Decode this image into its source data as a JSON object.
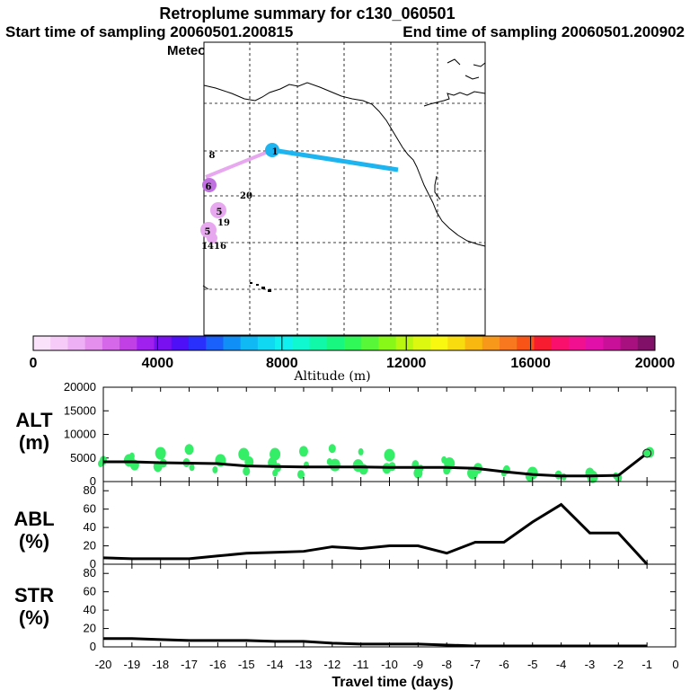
{
  "title": {
    "line1": "Retroplume summary for c130_060501",
    "line2a": "Start time of sampling 20060501.200815",
    "line2b": "End time of sampling 20060501.200902",
    "line3": "Meteorological data used is GFS"
  },
  "colors": {
    "plume_blue": "#1eb4f0",
    "plume_pink": "#e8a8f0",
    "plume_violet": "#c070e0",
    "scatter_green": "#33ee66",
    "colorbar": [
      "#fbe2fb",
      "#f6cbf8",
      "#eeb0f4",
      "#e48eee",
      "#d468e8",
      "#c040e6",
      "#a020ee",
      "#7810f0",
      "#4e10f6",
      "#2a30fc",
      "#1a60fa",
      "#1090f6",
      "#10b8f4",
      "#10d8f2",
      "#10f0f0",
      "#10f8d0",
      "#10f8a8",
      "#18f880",
      "#30f858",
      "#58f838",
      "#88f818",
      "#b8f810",
      "#dcf810",
      "#f8f810",
      "#f8dc10",
      "#f8b810",
      "#f8981a",
      "#f87820",
      "#f85418",
      "#f81c30",
      "#f8106c",
      "#f01090",
      "#e010a8",
      "#c81098",
      "#a81080",
      "#801068"
    ]
  },
  "map": {
    "markers": [
      {
        "label": "1",
        "kind": "circle-blue"
      },
      {
        "label": "6",
        "kind": "circle-violet"
      },
      {
        "label": "5",
        "kind": "circle-pink"
      },
      {
        "label": "5",
        "kind": "circle-pink"
      },
      {
        "label": "8",
        "kind": "text"
      },
      {
        "label": "20",
        "kind": "text"
      },
      {
        "label": "19",
        "kind": "text"
      },
      {
        "label": "1416",
        "kind": "text"
      }
    ]
  },
  "chart_data": [
    {
      "type": "colorbar",
      "tick_labels": [
        "0",
        "4000",
        "8000",
        "12000",
        "16000",
        "20000"
      ],
      "range": [
        0,
        20000
      ],
      "xlabel": "Altitude (m)"
    },
    {
      "type": "line",
      "name": "ALT",
      "ylabel": "ALT\n(m)",
      "ylabel_lines": [
        "ALT",
        "(m)"
      ],
      "ylim": [
        0,
        20000
      ],
      "yticks": [
        "0",
        "5000",
        "10000",
        "15000",
        "20000"
      ],
      "x": [
        -20,
        -19,
        -18,
        -17,
        -16,
        -15,
        -14,
        -13,
        -12,
        -11,
        -10,
        -9,
        -8,
        -7,
        -6,
        -5,
        -4,
        -3,
        -2,
        -1
      ],
      "values": [
        4200,
        4200,
        4000,
        3900,
        3800,
        3300,
        3200,
        3100,
        3100,
        3100,
        3000,
        3000,
        3000,
        2800,
        2100,
        1500,
        1200,
        1200,
        1300,
        6000
      ],
      "scatter": [
        [
          -20,
          3800
        ],
        [
          -20,
          4500
        ],
        [
          -19,
          3500
        ],
        [
          -19,
          4500
        ],
        [
          -19,
          5400
        ],
        [
          -18,
          3900
        ],
        [
          -18,
          3200
        ],
        [
          -18,
          6000
        ],
        [
          -17,
          3000
        ],
        [
          -17,
          4000
        ],
        [
          -17,
          6800
        ],
        [
          -16,
          4500
        ],
        [
          -16,
          2500
        ],
        [
          -15,
          2200
        ],
        [
          -15,
          4200
        ],
        [
          -15,
          5800
        ],
        [
          -14,
          1800
        ],
        [
          -14,
          3000
        ],
        [
          -14,
          4000
        ],
        [
          -14,
          5800
        ],
        [
          -13,
          3500
        ],
        [
          -13,
          1500
        ],
        [
          -13,
          6400
        ],
        [
          -12,
          3500
        ],
        [
          -12,
          4200
        ],
        [
          -12,
          7000
        ],
        [
          -11,
          2600
        ],
        [
          -11,
          3400
        ],
        [
          -11,
          6300
        ],
        [
          -10,
          3200
        ],
        [
          -10,
          2800
        ],
        [
          -10,
          5600
        ],
        [
          -9,
          2800
        ],
        [
          -9,
          3600
        ],
        [
          -9,
          1800
        ],
        [
          -8,
          3800
        ],
        [
          -8,
          4600
        ],
        [
          -8,
          2400
        ],
        [
          -7,
          2800
        ],
        [
          -7,
          1800
        ],
        [
          -6,
          1800
        ],
        [
          -6,
          2500
        ],
        [
          -5,
          1200
        ],
        [
          -5,
          1800
        ],
        [
          -4,
          1000
        ],
        [
          -4,
          1400
        ],
        [
          -3,
          1800
        ],
        [
          -3,
          1000
        ],
        [
          -2,
          1200
        ],
        [
          -2,
          800
        ],
        [
          -1,
          6200
        ]
      ]
    },
    {
      "type": "line",
      "name": "ABL",
      "ylabel_lines": [
        "ABL",
        "(%)"
      ],
      "ylim": [
        0,
        90
      ],
      "yticks": [
        "0",
        "20",
        "40",
        "60",
        "80"
      ],
      "x": [
        -20,
        -19,
        -18,
        -17,
        -16,
        -15,
        -14,
        -13,
        -12,
        -11,
        -10,
        -9,
        -8,
        -7,
        -6,
        -5,
        -4,
        -3,
        -2,
        -1
      ],
      "values": [
        7,
        6,
        6,
        6,
        9,
        12,
        13,
        14,
        19,
        17,
        20,
        20,
        12,
        24,
        24,
        46,
        65,
        34,
        34,
        0
      ]
    },
    {
      "type": "line",
      "name": "STR",
      "ylabel_lines": [
        "STR",
        "(%)"
      ],
      "ylim": [
        0,
        90
      ],
      "yticks": [
        "0",
        "20",
        "40",
        "60",
        "80"
      ],
      "x": [
        -20,
        -19,
        -18,
        -17,
        -16,
        -15,
        -14,
        -13,
        -12,
        -11,
        -10,
        -9,
        -8,
        -7,
        -6,
        -5,
        -4,
        -3,
        -2,
        -1
      ],
      "values": [
        9,
        9,
        8,
        7,
        7,
        7,
        6,
        6,
        4,
        3,
        3,
        3,
        2,
        1,
        1,
        1,
        1,
        1,
        1,
        1
      ],
      "xticks": [
        "-20",
        "-19",
        "-18",
        "-17",
        "-16",
        "-15",
        "-14",
        "-13",
        "-12",
        "-11",
        "-10",
        "-9",
        "-8",
        "-7",
        "-6",
        "-5",
        "-4",
        "-3",
        "-2",
        "-1",
        "0"
      ],
      "xlabel": "Travel time (days)"
    }
  ]
}
